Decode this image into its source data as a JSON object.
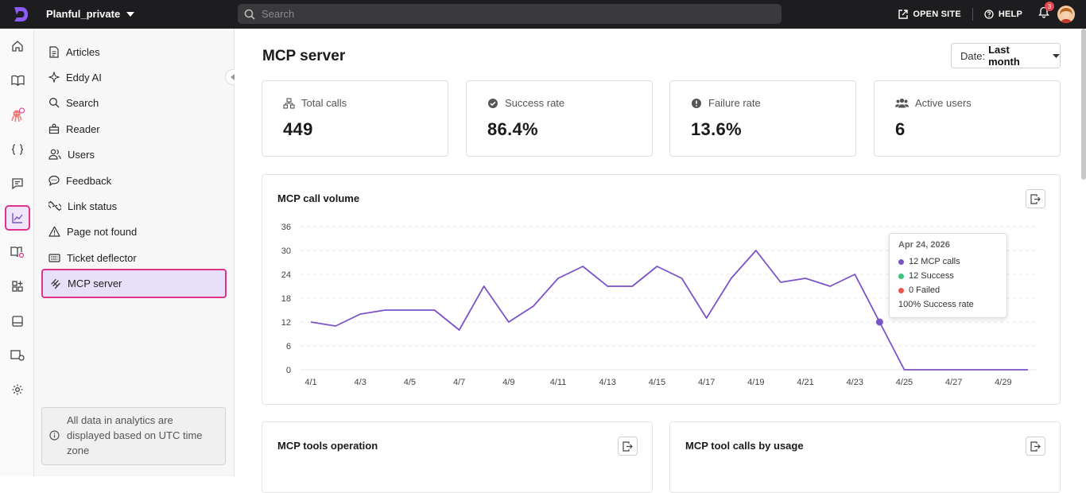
{
  "topbar": {
    "project_name": "Planful_private",
    "search_placeholder": "Search",
    "open_site_label": "OPEN SITE",
    "help_label": "HELP",
    "notification_count": "3"
  },
  "sidebar": {
    "items": [
      {
        "label": "Articles",
        "icon": "document-icon"
      },
      {
        "label": "Eddy AI",
        "icon": "sparkle-icon"
      },
      {
        "label": "Search",
        "icon": "search-icon"
      },
      {
        "label": "Reader",
        "icon": "reader-icon"
      },
      {
        "label": "Users",
        "icon": "users-icon"
      },
      {
        "label": "Feedback",
        "icon": "feedback-icon"
      },
      {
        "label": "Link status",
        "icon": "link-broken-icon"
      },
      {
        "label": "Page not found",
        "icon": "warning-icon"
      },
      {
        "label": "Ticket deflector",
        "icon": "ticket-icon"
      },
      {
        "label": "MCP server",
        "icon": "mcp-icon"
      }
    ],
    "note": "All data in analytics are displayed based on UTC time zone"
  },
  "main": {
    "title": "MCP server",
    "date_label": "Date:",
    "date_value": "Last month",
    "stats": [
      {
        "label": "Total calls",
        "value": "449",
        "icon": "network-icon"
      },
      {
        "label": "Success rate",
        "value": "86.4%",
        "icon": "check-circle-icon"
      },
      {
        "label": "Failure rate",
        "value": "13.6%",
        "icon": "alert-circle-icon"
      },
      {
        "label": "Active users",
        "value": "6",
        "icon": "users-group-icon"
      }
    ],
    "call_volume_title": "MCP call volume",
    "tools_operation_title": "MCP tools operation",
    "tool_calls_title": "MCP tool calls by usage"
  },
  "tooltip": {
    "date": "Apr 24, 2026",
    "calls": "12 MCP calls",
    "success": "12 Success",
    "failed": "0 Failed",
    "rate": "100% Success rate"
  },
  "colors": {
    "accent": "#7b52c8",
    "highlight": "#e0338b",
    "success": "#3cc47c",
    "failed": "#f05252"
  },
  "chart_data": {
    "type": "line",
    "title": "MCP call volume",
    "categories": [
      "4/1",
      "4/2",
      "4/3",
      "4/4",
      "4/5",
      "4/6",
      "4/7",
      "4/8",
      "4/9",
      "4/10",
      "4/11",
      "4/12",
      "4/13",
      "4/14",
      "4/15",
      "4/16",
      "4/17",
      "4/18",
      "4/19",
      "4/20",
      "4/21",
      "4/22",
      "4/23",
      "4/24",
      "4/25",
      "4/26",
      "4/27",
      "4/28",
      "4/29",
      "4/30"
    ],
    "tick_labels": [
      "4/1",
      "4/3",
      "4/5",
      "4/7",
      "4/9",
      "4/11",
      "4/13",
      "4/15",
      "4/17",
      "4/19",
      "4/21",
      "4/23",
      "4/25",
      "4/27",
      "4/29"
    ],
    "values": [
      12,
      11,
      14,
      15,
      15,
      15,
      10,
      21,
      12,
      16,
      23,
      26,
      21,
      21,
      26,
      23,
      13,
      23,
      30,
      22,
      23,
      21,
      24,
      12,
      0,
      0,
      0,
      0,
      0,
      0
    ],
    "yticks": [
      0,
      6,
      12,
      18,
      24,
      30,
      36
    ],
    "ylim": [
      0,
      36
    ],
    "highlight_index": 23,
    "grid": true
  }
}
